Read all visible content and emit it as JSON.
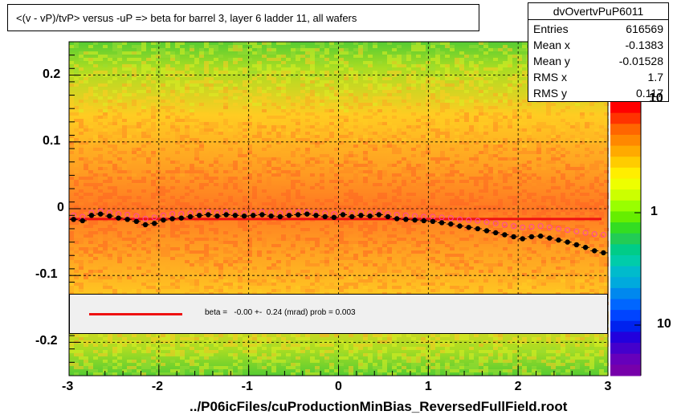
{
  "title": "<(v - vP)/tvP>  versus  -uP => beta for barrel 3, layer 6 ladder 11, all wafers",
  "stats": {
    "name": "dvOvertvPuP6011",
    "rows": [
      {
        "label": "Entries",
        "value": "616569"
      },
      {
        "label": "Mean x",
        "value": "-0.1383"
      },
      {
        "label": "Mean y",
        "value": "-0.01528"
      },
      {
        "label": "RMS x",
        "value": "1.7"
      },
      {
        "label": "RMS y",
        "value": "0.117"
      }
    ]
  },
  "fit_legend": "beta =   -0.00 +-  0.24 (mrad) prob = 0.003",
  "x_axis_title": "../P06icFiles/cuProductionMinBias_ReversedFullField.root",
  "colors": {
    "fit_line": "#ee1111",
    "profile_black": "#000000",
    "profile_magenta": "#ff44aa"
  },
  "chart_data": {
    "type": "heatmap",
    "title": "<(v - vP)/tvP>  versus  -uP => beta for barrel 3, layer 6 ladder 11, all wafers",
    "xlabel": "../P06icFiles/cuProductionMinBias_ReversedFullField.root",
    "ylabel": "",
    "xlim": [
      -3,
      3
    ],
    "ylim": [
      -0.25,
      0.25
    ],
    "x_ticks": [
      "-3",
      "-2",
      "-1",
      "0",
      "1",
      "2",
      "3"
    ],
    "y_ticks": [
      "-0.2",
      "-0.1",
      "0",
      "0.1",
      "0.2"
    ],
    "z_scale": "log",
    "z_ticks": [
      "10",
      "1",
      "10"
    ],
    "grid": true,
    "series": [
      {
        "kind": "profile-mean",
        "x": [
          -2.95,
          -2.85,
          -2.75,
          -2.65,
          -2.55,
          -2.45,
          -2.35,
          -2.25,
          -2.15,
          -2.05,
          -1.95,
          -1.85,
          -1.75,
          -1.65,
          -1.55,
          -1.45,
          -1.35,
          -1.25,
          -1.15,
          -1.05,
          -0.95,
          -0.85,
          -0.75,
          -0.65,
          -0.55,
          -0.45,
          -0.35,
          -0.25,
          -0.15,
          -0.05,
          0.05,
          0.15,
          0.25,
          0.35,
          0.45,
          0.55,
          0.65,
          0.75,
          0.85,
          0.95,
          1.05,
          1.15,
          1.25,
          1.35,
          1.45,
          1.55,
          1.65,
          1.75,
          1.85,
          1.95,
          2.05,
          2.15,
          2.25,
          2.35,
          2.45,
          2.55,
          2.65,
          2.75,
          2.85,
          2.95
        ],
        "y": [
          -0.016,
          -0.018,
          -0.01,
          -0.008,
          -0.011,
          -0.014,
          -0.016,
          -0.019,
          -0.024,
          -0.022,
          -0.017,
          -0.015,
          -0.014,
          -0.012,
          -0.01,
          -0.009,
          -0.011,
          -0.009,
          -0.01,
          -0.011,
          -0.01,
          -0.009,
          -0.011,
          -0.012,
          -0.01,
          -0.009,
          -0.008,
          -0.01,
          -0.012,
          -0.013,
          -0.009,
          -0.012,
          -0.01,
          -0.011,
          -0.009,
          -0.012,
          -0.015,
          -0.016,
          -0.017,
          -0.018,
          -0.019,
          -0.021,
          -0.023,
          -0.026,
          -0.028,
          -0.03,
          -0.033,
          -0.036,
          -0.039,
          -0.042,
          -0.045,
          -0.042,
          -0.041,
          -0.044,
          -0.047,
          -0.05,
          -0.054,
          -0.058,
          -0.063,
          -0.066
        ]
      },
      {
        "kind": "profile-alt",
        "x": [
          -2.95,
          -2.85,
          -2.75,
          -2.65,
          -2.55,
          -2.45,
          -2.35,
          -2.25,
          -2.15,
          -2.05,
          -1.95,
          -1.85,
          -1.75,
          -1.65,
          -1.55,
          -1.45,
          -1.35,
          -1.25,
          -1.15,
          -1.05,
          -0.95,
          -0.85,
          -0.75,
          -0.65,
          -0.55,
          -0.45,
          -0.35,
          -0.25,
          -0.15,
          -0.05,
          0.05,
          0.15,
          0.25,
          0.35,
          0.45,
          0.55,
          0.65,
          0.75,
          0.85,
          0.95,
          1.05,
          1.15,
          1.25,
          1.35,
          1.45,
          1.55,
          1.65,
          1.75,
          1.85,
          1.95,
          2.05,
          2.15,
          2.25,
          2.35,
          2.45,
          2.55,
          2.65,
          2.75,
          2.85,
          2.95
        ],
        "y": [
          -0.01,
          -0.012,
          -0.006,
          -0.004,
          -0.006,
          -0.008,
          -0.009,
          -0.011,
          -0.015,
          -0.013,
          -0.01,
          -0.008,
          -0.008,
          -0.007,
          -0.006,
          -0.005,
          -0.006,
          -0.005,
          -0.006,
          -0.007,
          -0.006,
          -0.005,
          -0.006,
          -0.007,
          -0.006,
          -0.005,
          -0.005,
          -0.006,
          -0.007,
          -0.008,
          -0.006,
          -0.007,
          -0.006,
          -0.007,
          -0.006,
          -0.008,
          -0.009,
          -0.01,
          -0.011,
          -0.012,
          -0.012,
          -0.013,
          -0.014,
          -0.016,
          -0.017,
          -0.018,
          -0.02,
          -0.022,
          -0.024,
          -0.026,
          -0.028,
          -0.027,
          -0.026,
          -0.028,
          -0.03,
          -0.032,
          -0.034,
          -0.036,
          -0.038,
          -0.039
        ]
      },
      {
        "kind": "fit-line",
        "x": [
          -3,
          3
        ],
        "y": [
          -0.0155,
          -0.0155
        ]
      }
    ]
  }
}
